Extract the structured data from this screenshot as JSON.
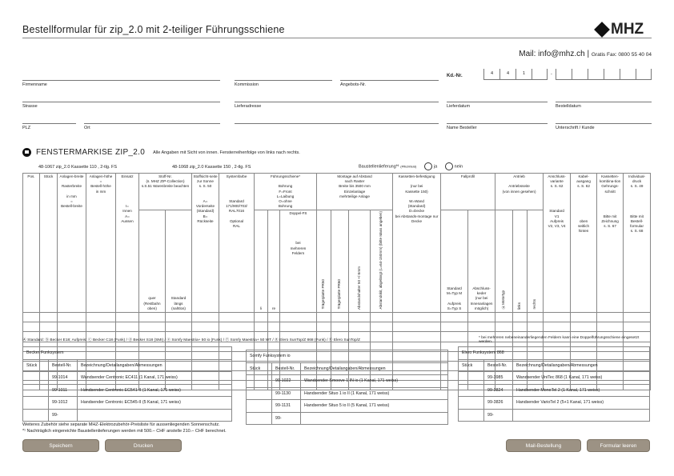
{
  "header": {
    "title": "Bestellformular für zip_2.0 mit 2-teiliger Führungsschiene",
    "logo": "MHZ",
    "mail": "Mail: info@mhz.ch |",
    "fax": "Gratis Fax: 0800 55 40 04"
  },
  "fields": {
    "firmenname": "Firmenname",
    "kommission": "Kommission",
    "angebot": "Angebots-Nr.",
    "strasse": "Strasse",
    "lieferadresse": "Lieferadresse",
    "lieferdatum": "Lieferdatum",
    "bestelldatum": "Bestelldatum",
    "plz": "PLZ",
    "ort": "Ort",
    "name_besteller": "Name Besteller",
    "unterschrift": "Unterschrift / Kunde",
    "kd_label": "Kd.-Nr.",
    "kd_digits": [
      "4",
      "4",
      "1",
      ""
    ],
    "kd_dash": "-"
  },
  "section": {
    "title": "FENSTERMARKISE ZIP_2.0",
    "note": "Alle Angaben mit Sicht von innen. Fensterreihenfolge von links nach rechts.",
    "product1": "48-1067 zip_2.0 Kassette 110 , 2-tlg. FS",
    "product2": "48-1068 zip_2.0 Kassette 150 , 2-tlg. FS",
    "baustelle": "Baustellenlieferung*¹",
    "pflicht": "(Pflichtfeld)",
    "ja": "ja",
    "nein": "nein"
  },
  "table": {
    "pos": "Pos.",
    "stueck": "Stück",
    "breite": "Anlagen-breite\n\nRasterbreite\n\nin mm\n=\nBestell-breite",
    "hoehe": "Anlagen-höhe\n=\nBestell-höhe\nin mm",
    "einsatz": "Einsatz\n\n\n\n\n\nI=\nInnen\nA=\nAussen",
    "stoff": "Stoff-Nr.\n(s. MHZ ZIP-Collection)\ns.S.51 Warenbreite beachten",
    "quer": "quer\n(Restbahn oben)",
    "laengs": "Standard\nlängs\n(nahtlos)",
    "sichtseite": "Stoffsicht-seite\nzur Sonne\ns. S. 50\n\n\nA=\nVorderseite\n(Standard)\nB=\nRückseite",
    "farbe": "Systemfarbe\n\n\n\n\nStandard\n171/900/703/\nRAL7016\n\nOptional\nRAL",
    "fuehrung": "Führungsschiene*\n\nBohrung\nF=Front\nL=Laibung\nO=ohne\nBohrung",
    "li": "li",
    "re": "re",
    "doppel": "Doppel-FS\n\n\n\n\n\nbei\nmehreren\nFeldern",
    "montage": "Montage auf Abstand\nnach Raster\nBreite bis 3500 mm\nEinzelanlage\nmehrteilige Anlage",
    "m1": "Trägerplatte PR50",
    "m2": "Trägerplatte PR60",
    "m3": "Abstandshalter 50 +/-5mm",
    "m4": "Abstandskit, abgelängt (L=64-150mm) (bitte Mass angeben)",
    "kassette": "Kassetten-befestigung\n\n(nur bei\nKassette 150)\n\nW=Wand\n(Standard)\nD=Decke\nbei Abstands-montage nur Decke",
    "fallprofil": "Fallprofil",
    "fp1": "Standard\nM=Typ M\n\nAufpreis\nS=Typ S",
    "fp2": "Abschluss-keder\n(nur bei Innenanlagen möglich)",
    "antrieb": "Antrieb\n\nAntriebsseite\n(von innen gesehen)",
    "motortyp": "Ⓐ Motortyp",
    "links": "links",
    "rechts": "rechts",
    "anschluss": "Anschluss-variante\ns. S. 62\n\n\n\n\nStandard\nV1\nAufpreis\nV2, V3, V4",
    "kabel": "Kabel-ausgang\ns. S. 62\n\n\n\n\n\n\noben\nseitlich\nhinten",
    "kombi": "Kassetten-kombina-tion\nGehrungs-schnitt\n\n\n\n\nBitte mit\nZeichnung\ns. S. 67",
    "individual": "Individual-druck\ns. S. 49\n\n\n\n\n\nBitte mit\nBestell-formular\ns. S. 68",
    "rows": 8
  },
  "legend": "Ⓐ Standard: ⓑ Becker E18; Aufpreis: ⓒ Becker C18 (Funk) / ⓓ Becker S18 (SMI) / ⓔ Somfy Maestria+ 50 io (Funk) / ⓕ Somfy Maestria+ 50 WT / ⓖ Elero SunTop/Z 868 (Funk) / ⓗ Elero SunTop/Z",
  "legend_note": "* bei mehreren nebeneinanderliegenden Feldern kann eine Doppelführungsschiene eingesetzt werden.",
  "lists": [
    {
      "title": "Becker Funksystem",
      "cols": [
        "Stück",
        "Bestell-Nr.",
        "Bezeichnung/Detailangaben/Abmessungen"
      ],
      "rows": [
        [
          "",
          "99-1014",
          "Wandsender Centronic EC411 (1 Kanal, 171 weiss)"
        ],
        [
          "",
          "99-1011",
          "Handsender Centronic EC541-II (1 Kanal, 171 weiss)"
        ],
        [
          "",
          "99-1012",
          "Handsender Centronic EC545-II (5 Kanal, 171 weiss)"
        ],
        [
          "",
          "99-",
          ""
        ]
      ]
    },
    {
      "title": "Somfy Funksystem io",
      "cols": [
        "Stück",
        "Bestell-Nr.",
        "Bezeichnung/Detailangaben/Abmessungen"
      ],
      "rows": [
        [
          "",
          "99-1022",
          "Wandsender Smoove 1 IN io (1 Kanal, 171 weiss)"
        ],
        [
          "",
          "99-1130",
          "Handsender Situo 1 io II (1 Kanal, 171 weiss)"
        ],
        [
          "",
          "99-1131",
          "Handsender Situo 5 io II (5 Kanal, 171 weiss)"
        ],
        [
          "",
          "99-",
          ""
        ]
      ]
    },
    {
      "title": "Elero Funksystem 868",
      "cols": [
        "Stück",
        "Bestell-Nr.",
        "Bezeichnung/Detailangaben/Abmessungen"
      ],
      "rows": [
        [
          "",
          "99-3985",
          "Wandsender UniTec 868 (1 Kanal, 171 weiss)"
        ],
        [
          "",
          "99-3824",
          "Handsender MonoTel 2 (1 Kanal, 171 weiss)"
        ],
        [
          "",
          "99-3826",
          "Handsender VarioTel 2 (5+1 Kanal, 171 weiss)"
        ],
        [
          "",
          "99-",
          ""
        ]
      ]
    }
  ],
  "footer": {
    "line1": "Weiteres Zubehör siehe separate MHZ-Elektrozubehör-Preisliste für aussenliegenden Sonnenschutz.",
    "line2": "*¹ Nachträglich eingereichte Baustellenlieferungen werden mit 500.– CHF anstelle 210.– CHF berechnet."
  },
  "buttons": {
    "save": "Speichern",
    "print": "Drucken",
    "mail": "Mail-Bestellung",
    "clear": "Formular leeren"
  },
  "colors": {
    "button": "#9c9284"
  }
}
